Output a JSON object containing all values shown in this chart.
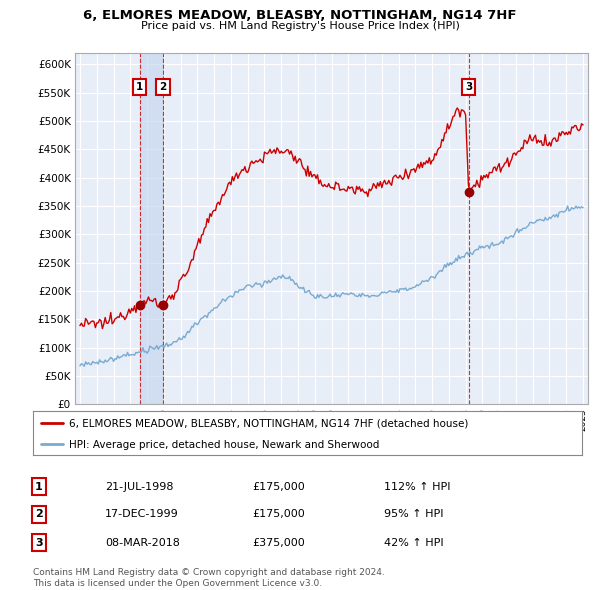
{
  "title": "6, ELMORES MEADOW, BLEASBY, NOTTINGHAM, NG14 7HF",
  "subtitle": "Price paid vs. HM Land Registry's House Price Index (HPI)",
  "background_color": "#ffffff",
  "plot_bg_color": "#e8eef8",
  "grid_color": "#ffffff",
  "red_line_color": "#cc0000",
  "blue_line_color": "#7aaad0",
  "sale_marker_color": "#990000",
  "shade_color": "#c8d8f0",
  "ylim": [
    0,
    620000
  ],
  "yticks": [
    0,
    50000,
    100000,
    150000,
    200000,
    250000,
    300000,
    350000,
    400000,
    450000,
    500000,
    550000,
    600000
  ],
  "ytick_labels": [
    "£0",
    "£50K",
    "£100K",
    "£150K",
    "£200K",
    "£250K",
    "£300K",
    "£350K",
    "£400K",
    "£450K",
    "£500K",
    "£550K",
    "£600K"
  ],
  "sales": [
    {
      "date_num": 1998.55,
      "price": 175000,
      "label": "1"
    },
    {
      "date_num": 1999.96,
      "price": 175000,
      "label": "2"
    },
    {
      "date_num": 2018.18,
      "price": 375000,
      "label": "3"
    }
  ],
  "legend_entries": [
    "6, ELMORES MEADOW, BLEASBY, NOTTINGHAM, NG14 7HF (detached house)",
    "HPI: Average price, detached house, Newark and Sherwood"
  ],
  "table_rows": [
    {
      "num": "1",
      "date": "21-JUL-1998",
      "price": "£175,000",
      "hpi": "112% ↑ HPI"
    },
    {
      "num": "2",
      "date": "17-DEC-1999",
      "price": "£175,000",
      "hpi": "95% ↑ HPI"
    },
    {
      "num": "3",
      "date": "08-MAR-2018",
      "price": "£375,000",
      "hpi": "42% ↑ HPI"
    }
  ],
  "footer": "Contains HM Land Registry data © Crown copyright and database right 2024.\nThis data is licensed under the Open Government Licence v3.0."
}
